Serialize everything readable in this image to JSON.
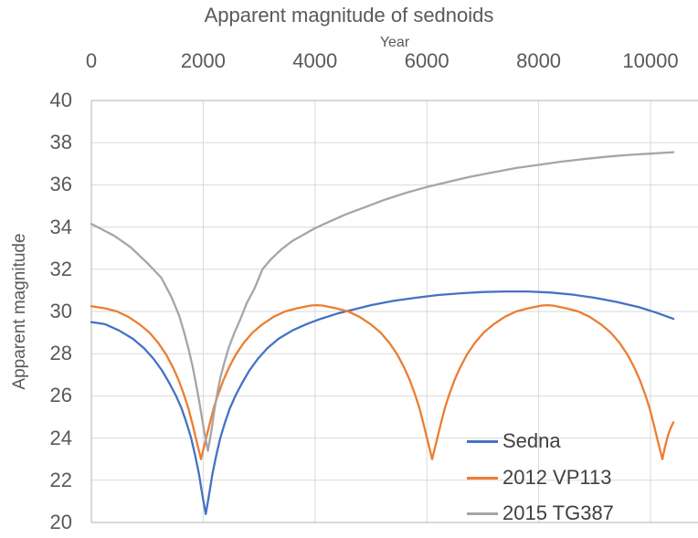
{
  "chart": {
    "title": "Apparent magnitude of sednoids",
    "x_axis_title": "Year",
    "y_axis_title": "Apparent magnitude"
  },
  "colors": {
    "grid": "#d9d9d9",
    "axis_border": "#c0c0c0",
    "tick_text": "#595959",
    "legend_text": "#404040"
  },
  "chart_data": {
    "type": "line",
    "title": "Apparent magnitude of sednoids",
    "xlabel": "Year",
    "ylabel": "Apparent magnitude",
    "xlim": [
      0,
      10850
    ],
    "ylim": [
      20,
      40
    ],
    "x_ticks": [
      0,
      2000,
      4000,
      6000,
      8000,
      10000
    ],
    "y_ticks": [
      20,
      22,
      24,
      26,
      28,
      30,
      32,
      34,
      36,
      38,
      40
    ],
    "grid": true,
    "legend_position": "inside-lower-right",
    "series": [
      {
        "name": "Sedna",
        "color": "#4472C4",
        "points": [
          [
            0,
            29.5
          ],
          [
            245,
            29.4
          ],
          [
            495,
            29.1
          ],
          [
            745,
            28.7
          ],
          [
            945,
            28.25
          ],
          [
            1115,
            27.75
          ],
          [
            1265,
            27.2
          ],
          [
            1395,
            26.6
          ],
          [
            1515,
            26.0
          ],
          [
            1615,
            25.4
          ],
          [
            1705,
            24.7
          ],
          [
            1785,
            24.0
          ],
          [
            1855,
            23.2
          ],
          [
            1925,
            22.3
          ],
          [
            1985,
            21.3
          ],
          [
            2045,
            20.4
          ],
          [
            2105,
            21.3
          ],
          [
            2165,
            22.3
          ],
          [
            2235,
            23.2
          ],
          [
            2305,
            24.0
          ],
          [
            2385,
            24.7
          ],
          [
            2475,
            25.4
          ],
          [
            2575,
            26.0
          ],
          [
            2695,
            26.6
          ],
          [
            2825,
            27.2
          ],
          [
            2975,
            27.75
          ],
          [
            3145,
            28.25
          ],
          [
            3345,
            28.7
          ],
          [
            3595,
            29.1
          ],
          [
            3845,
            29.4
          ],
          [
            4100,
            29.65
          ],
          [
            4400,
            29.9
          ],
          [
            4700,
            30.1
          ],
          [
            5000,
            30.3
          ],
          [
            5400,
            30.5
          ],
          [
            5800,
            30.65
          ],
          [
            6200,
            30.78
          ],
          [
            6600,
            30.86
          ],
          [
            7000,
            30.92
          ],
          [
            7400,
            30.95
          ],
          [
            7800,
            30.95
          ],
          [
            8200,
            30.9
          ],
          [
            8600,
            30.8
          ],
          [
            9000,
            30.65
          ],
          [
            9400,
            30.45
          ],
          [
            9800,
            30.2
          ],
          [
            10100,
            29.95
          ],
          [
            10410,
            29.65
          ]
        ]
      },
      {
        "name": "2012 VP113",
        "color": "#ED7D31",
        "points": [
          [
            0,
            30.25
          ],
          [
            240,
            30.15
          ],
          [
            460,
            30.0
          ],
          [
            660,
            29.75
          ],
          [
            860,
            29.4
          ],
          [
            1040,
            29.0
          ],
          [
            1200,
            28.5
          ],
          [
            1340,
            27.95
          ],
          [
            1460,
            27.35
          ],
          [
            1560,
            26.75
          ],
          [
            1650,
            26.1
          ],
          [
            1730,
            25.45
          ],
          [
            1800,
            24.75
          ],
          [
            1860,
            24.1
          ],
          [
            1911,
            23.55
          ],
          [
            1961,
            23.0
          ],
          [
            2011,
            23.55
          ],
          [
            2062,
            24.1
          ],
          [
            2122,
            24.75
          ],
          [
            2192,
            25.45
          ],
          [
            2272,
            26.1
          ],
          [
            2362,
            26.75
          ],
          [
            2462,
            27.35
          ],
          [
            2582,
            27.95
          ],
          [
            2722,
            28.5
          ],
          [
            2882,
            29.0
          ],
          [
            3062,
            29.4
          ],
          [
            3262,
            29.75
          ],
          [
            3462,
            30.0
          ],
          [
            3682,
            30.15
          ],
          [
            3922,
            30.28
          ],
          [
            4028,
            30.3
          ],
          [
            4134,
            30.28
          ],
          [
            4374,
            30.15
          ],
          [
            4594,
            30.0
          ],
          [
            4794,
            29.75
          ],
          [
            4994,
            29.4
          ],
          [
            5174,
            29.0
          ],
          [
            5334,
            28.5
          ],
          [
            5474,
            27.95
          ],
          [
            5594,
            27.35
          ],
          [
            5694,
            26.75
          ],
          [
            5784,
            26.1
          ],
          [
            5864,
            25.45
          ],
          [
            5934,
            24.75
          ],
          [
            5994,
            24.1
          ],
          [
            6045,
            23.55
          ],
          [
            6095,
            23.0
          ],
          [
            6145,
            23.55
          ],
          [
            6196,
            24.1
          ],
          [
            6256,
            24.75
          ],
          [
            6326,
            25.45
          ],
          [
            6406,
            26.1
          ],
          [
            6496,
            26.75
          ],
          [
            6596,
            27.35
          ],
          [
            6716,
            27.95
          ],
          [
            6856,
            28.5
          ],
          [
            7016,
            29.0
          ],
          [
            7196,
            29.4
          ],
          [
            7396,
            29.75
          ],
          [
            7596,
            30.0
          ],
          [
            7816,
            30.15
          ],
          [
            8056,
            30.28
          ],
          [
            8153,
            30.3
          ],
          [
            8250,
            30.28
          ],
          [
            8490,
            30.15
          ],
          [
            8710,
            30.0
          ],
          [
            8910,
            29.75
          ],
          [
            9110,
            29.4
          ],
          [
            9290,
            29.0
          ],
          [
            9450,
            28.5
          ],
          [
            9590,
            27.95
          ],
          [
            9710,
            27.35
          ],
          [
            9810,
            26.75
          ],
          [
            9900,
            26.1
          ],
          [
            9980,
            25.45
          ],
          [
            10050,
            24.75
          ],
          [
            10110,
            24.1
          ],
          [
            10161,
            23.55
          ],
          [
            10212,
            23.0
          ],
          [
            10262,
            23.6
          ],
          [
            10315,
            24.15
          ],
          [
            10365,
            24.5
          ],
          [
            10410,
            24.75
          ]
        ]
      },
      {
        "name": "2015 TG387",
        "color": "#A6A6A6",
        "points": [
          [
            0,
            34.15
          ],
          [
            400,
            33.6
          ],
          [
            700,
            33.05
          ],
          [
            1000,
            32.3
          ],
          [
            1250,
            31.6
          ],
          [
            1430,
            30.7
          ],
          [
            1570,
            29.8
          ],
          [
            1660,
            29.0
          ],
          [
            1740,
            28.2
          ],
          [
            1810,
            27.4
          ],
          [
            1870,
            26.6
          ],
          [
            1925,
            25.8
          ],
          [
            1975,
            25.0
          ],
          [
            2020,
            24.3
          ],
          [
            2055,
            23.8
          ],
          [
            2085,
            23.4
          ],
          [
            2118,
            23.9
          ],
          [
            2155,
            24.5
          ],
          [
            2200,
            25.3
          ],
          [
            2250,
            26.1
          ],
          [
            2310,
            26.9
          ],
          [
            2380,
            27.6
          ],
          [
            2460,
            28.3
          ],
          [
            2560,
            29.0
          ],
          [
            2660,
            29.6
          ],
          [
            2780,
            30.4
          ],
          [
            2920,
            31.1
          ],
          [
            3060,
            32.0
          ],
          [
            3220,
            32.5
          ],
          [
            3400,
            32.95
          ],
          [
            3600,
            33.35
          ],
          [
            3800,
            33.65
          ],
          [
            4000,
            33.95
          ],
          [
            4250,
            34.25
          ],
          [
            4550,
            34.6
          ],
          [
            4900,
            34.95
          ],
          [
            5250,
            35.3
          ],
          [
            5600,
            35.6
          ],
          [
            6000,
            35.9
          ],
          [
            6400,
            36.15
          ],
          [
            6800,
            36.4
          ],
          [
            7200,
            36.6
          ],
          [
            7600,
            36.8
          ],
          [
            8000,
            36.95
          ],
          [
            8400,
            37.1
          ],
          [
            8800,
            37.22
          ],
          [
            9200,
            37.33
          ],
          [
            9600,
            37.42
          ],
          [
            10000,
            37.48
          ],
          [
            10410,
            37.55
          ]
        ]
      }
    ]
  }
}
